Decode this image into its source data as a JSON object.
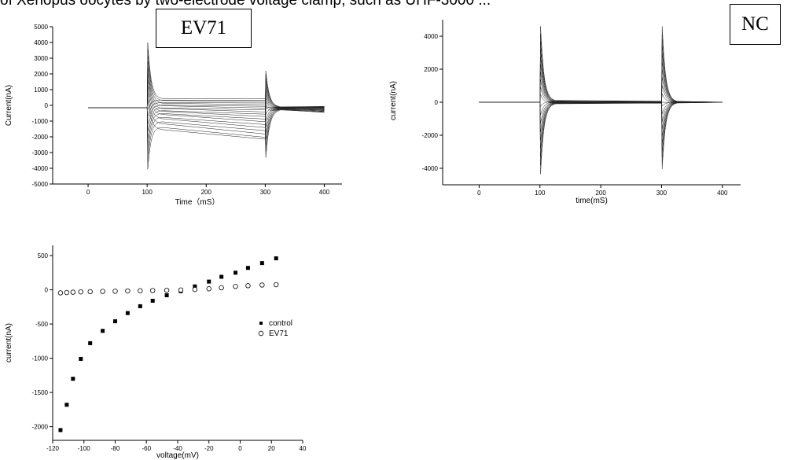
{
  "header": {
    "text": "of Xenopus oocytes by two-electrode voltage clamp, such as UHF-3000 ..."
  },
  "chart_data": [
    {
      "type": "line",
      "box_label": "EV71",
      "xlabel": "Time（mS）",
      "ylabel": "Current(nA)",
      "xlim": [
        -60,
        430
      ],
      "ylim": [
        -5000,
        5000
      ],
      "xticks": [
        0,
        100,
        200,
        300,
        400
      ],
      "yticks": [
        5000,
        4000,
        3000,
        2000,
        1000,
        0,
        -1000,
        -2000,
        -3000,
        -4000,
        -5000
      ],
      "grid": false,
      "traces": {
        "count": 19,
        "baseline": -150,
        "pulse_start": 100,
        "pulse_end": 300,
        "sweep_end": 400,
        "step_plateau_start": [
          400,
          350,
          280,
          200,
          120,
          40,
          -40,
          -120,
          -200,
          -280,
          -360,
          -440,
          -540,
          -660,
          -790,
          -930,
          -1100,
          -1280,
          -1480
        ],
        "step_plateau_end": [
          420,
          330,
          250,
          150,
          40,
          -60,
          -170,
          -290,
          -420,
          -560,
          -710,
          -870,
          -1040,
          -1220,
          -1410,
          -1610,
          -1820,
          -2030,
          -2150
        ],
        "on_transient_peak": [
          4000,
          -4300
        ],
        "off_transient_peak": [
          2200,
          -3700
        ]
      }
    },
    {
      "type": "line",
      "box_label": "NC",
      "xlabel": "time(mS)",
      "ylabel": "current(nA)",
      "xlim": [
        -60,
        430
      ],
      "ylim": [
        -5000,
        5000
      ],
      "xticks": [
        0,
        100,
        200,
        300,
        400
      ],
      "yticks": [
        4000,
        2000,
        0,
        -2000,
        -4000
      ],
      "grid": false,
      "traces": {
        "count": 19,
        "baseline": 0,
        "pulse_start": 100,
        "pulse_end": 300,
        "sweep_end": 400,
        "step_plateau": [
          60,
          50,
          40,
          30,
          20,
          10,
          5,
          0,
          -5,
          -10,
          -15,
          -20,
          -25,
          -30,
          -35,
          -40,
          -45,
          -50,
          -60
        ],
        "on_transient_peak": [
          4600,
          -4600
        ],
        "off_transient_peak": [
          4600,
          -4500
        ]
      }
    },
    {
      "type": "scatter",
      "xlabel": "voltage(mV)",
      "ylabel": "current(nA)",
      "xlim": [
        -120,
        40
      ],
      "ylim": [
        -2200,
        650
      ],
      "xticks": [
        -120,
        -100,
        -80,
        -60,
        -40,
        -20,
        0,
        20,
        40
      ],
      "yticks": [
        500,
        0,
        -500,
        -1000,
        -1500,
        -2000
      ],
      "grid": false,
      "legend_position": "middle-right",
      "series": [
        {
          "name": "control",
          "marker": "filled-square",
          "x": [
            -115,
            -111,
            -107,
            -102,
            -96,
            -88,
            -80,
            -72,
            -64,
            -56,
            -47,
            -38,
            -29,
            -20,
            -12,
            -3,
            5,
            14,
            23
          ],
          "y": [
            -2050,
            -1680,
            -1300,
            -1010,
            -780,
            -600,
            -460,
            -340,
            -240,
            -160,
            -80,
            -20,
            50,
            120,
            190,
            250,
            320,
            390,
            460
          ]
        },
        {
          "name": "EV71",
          "marker": "open-circle",
          "x": [
            -115,
            -111,
            -107,
            -102,
            -96,
            -88,
            -80,
            -72,
            -64,
            -56,
            -47,
            -38,
            -29,
            -20,
            -12,
            -3,
            5,
            14,
            23
          ],
          "y": [
            -45,
            -40,
            -35,
            -30,
            -27,
            -23,
            -20,
            -17,
            -14,
            -10,
            -7,
            -3,
            5,
            15,
            30,
            50,
            60,
            70,
            75
          ]
        }
      ]
    }
  ]
}
